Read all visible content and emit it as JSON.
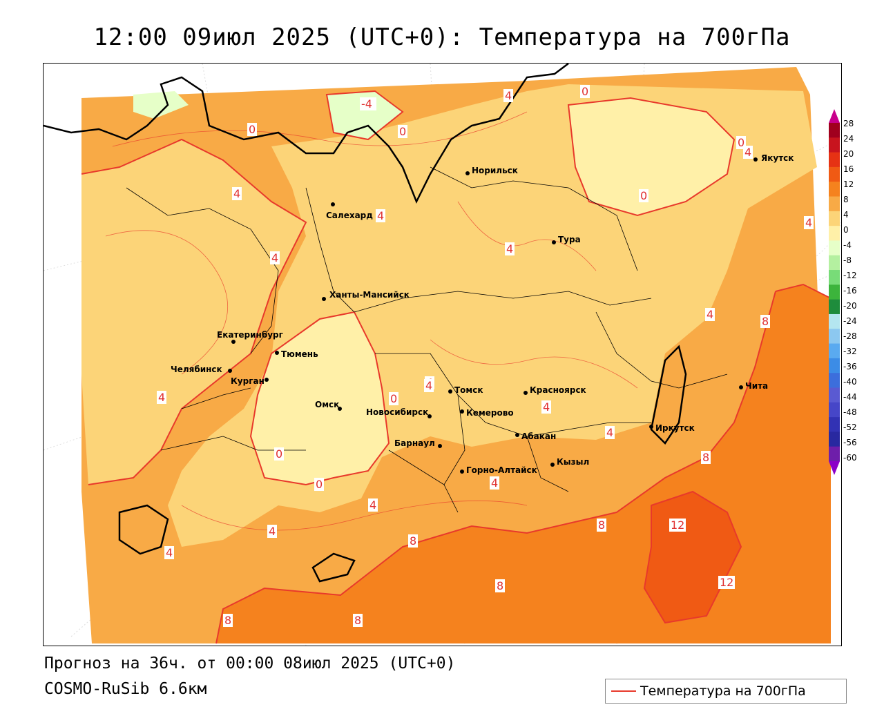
{
  "title": "12:00 09июл 2025 (UTC+0): Температура на 700гПа",
  "footer": {
    "forecast": "Прогноз на 36ч. от 00:00 08июл 2025 (UTC+0)",
    "model": "COSMO-RuSib 6.6км"
  },
  "legend": {
    "label": "Температура на 700гПа",
    "line_color": "#e8392b"
  },
  "colorbar": {
    "ticks": [
      "28",
      "24",
      "20",
      "16",
      "12",
      "8",
      "4",
      "0",
      "-4",
      "-8",
      "-12",
      "-16",
      "-20",
      "-24",
      "-28",
      "-32",
      "-36",
      "-40",
      "-44",
      "-48",
      "-52",
      "-56",
      "-60"
    ],
    "colors": [
      "#a0001e",
      "#c8141e",
      "#e63214",
      "#f05a14",
      "#f5821e",
      "#f8aa46",
      "#fcd478",
      "#fff0a8",
      "#e6ffc8",
      "#b4f0a0",
      "#78dc78",
      "#3cb43c",
      "#1e8c3c",
      "#b4e6f0",
      "#8cc8f0",
      "#5aaaf0",
      "#3c8ce6",
      "#3c6edc",
      "#5a5ad2",
      "#4646c8",
      "#3232b4",
      "#2828a0",
      "#6e1eaa"
    ]
  },
  "cities": [
    {
      "name": "Норильск"
    },
    {
      "name": "Якутск"
    },
    {
      "name": "Салехард"
    },
    {
      "name": "Тура"
    },
    {
      "name": "Ханты-Мансийск"
    },
    {
      "name": "Екатеринбург"
    },
    {
      "name": "Тюмень"
    },
    {
      "name": "Челябинск"
    },
    {
      "name": "Курган"
    },
    {
      "name": "Омск"
    },
    {
      "name": "Новосибирск"
    },
    {
      "name": "Томск"
    },
    {
      "name": "Кемерово"
    },
    {
      "name": "Красноярск"
    },
    {
      "name": "Абакан"
    },
    {
      "name": "Барнаул"
    },
    {
      "name": "Горно-Алтайск"
    },
    {
      "name": "Кызыл"
    },
    {
      "name": "Иркутск"
    },
    {
      "name": "Чита"
    }
  ],
  "isotherm_labels": [
    {
      "text": "-4"
    },
    {
      "text": "0"
    },
    {
      "text": "4"
    },
    {
      "text": "0"
    },
    {
      "text": "0"
    },
    {
      "text": "4"
    },
    {
      "text": "4"
    },
    {
      "text": "4"
    },
    {
      "text": "4"
    },
    {
      "text": "0"
    },
    {
      "text": "4"
    },
    {
      "text": "4"
    },
    {
      "text": "0"
    },
    {
      "text": "4"
    },
    {
      "text": "4"
    },
    {
      "text": "0"
    },
    {
      "text": "0"
    },
    {
      "text": "4"
    },
    {
      "text": "4"
    },
    {
      "text": "4"
    },
    {
      "text": "8"
    },
    {
      "text": "4"
    },
    {
      "text": "8"
    },
    {
      "text": "12"
    },
    {
      "text": "12"
    },
    {
      "text": "8"
    },
    {
      "text": "8"
    },
    {
      "text": "8"
    },
    {
      "text": "8"
    },
    {
      "text": "4"
    },
    {
      "text": "4"
    },
    {
      "text": "0"
    },
    {
      "text": "4"
    },
    {
      "text": "8"
    },
    {
      "text": "4"
    }
  ]
}
